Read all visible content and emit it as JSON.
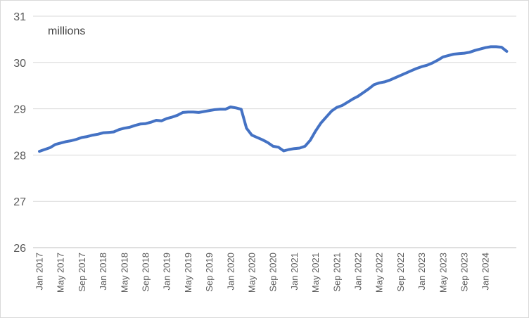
{
  "chart_data": {
    "type": "line",
    "unit_label": "millions",
    "ylim": [
      26,
      31
    ],
    "yticks": [
      26,
      27,
      28,
      29,
      30,
      31
    ],
    "grid": true,
    "legend": "none",
    "color": "#4472c4",
    "xtick_labels": [
      "Jan 2017",
      "May 2017",
      "Sep 2017",
      "Jan 2018",
      "May 2018",
      "Sep 2018",
      "Jan 2019",
      "May 2019",
      "Sep 2019",
      "Jan 2020",
      "May 2020",
      "Sep 2020",
      "Jan 2021",
      "May 2021",
      "Sep 2021",
      "Jan 2022",
      "May 2022",
      "Sep 2022",
      "Jan 2023",
      "May 2023",
      "Sep 2023",
      "Jan 2024"
    ],
    "start_month": "Jan 2017",
    "values": [
      28.08,
      28.12,
      28.16,
      28.23,
      28.26,
      28.29,
      28.31,
      28.34,
      28.38,
      28.4,
      28.43,
      28.45,
      28.48,
      28.49,
      28.5,
      28.55,
      28.58,
      28.6,
      28.64,
      28.67,
      28.68,
      28.71,
      28.75,
      28.74,
      28.79,
      28.82,
      28.86,
      28.92,
      28.93,
      28.93,
      28.92,
      28.94,
      28.96,
      28.98,
      28.99,
      28.99,
      29.04,
      29.02,
      28.99,
      28.58,
      28.43,
      28.38,
      28.33,
      28.27,
      28.19,
      28.17,
      28.09,
      28.12,
      28.14,
      28.15,
      28.19,
      28.32,
      28.52,
      28.69,
      28.82,
      28.95,
      29.03,
      29.07,
      29.14,
      29.21,
      29.27,
      29.35,
      29.43,
      29.52,
      29.56,
      29.58,
      29.62,
      29.67,
      29.72,
      29.77,
      29.82,
      29.87,
      29.91,
      29.94,
      29.99,
      30.05,
      30.12,
      30.15,
      30.18,
      30.19,
      30.2,
      30.22,
      30.26,
      30.29,
      30.32,
      30.34,
      30.34,
      30.33,
      30.24
    ]
  }
}
